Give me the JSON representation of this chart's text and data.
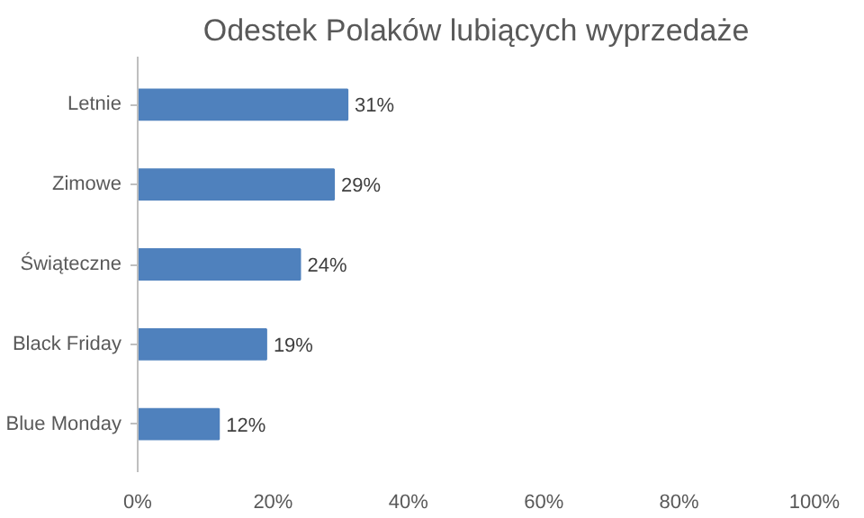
{
  "chart_data": {
    "type": "bar",
    "orientation": "horizontal",
    "title": "Odestek Polaków lubiących wyprzedaże",
    "categories": [
      "Letnie",
      "Zimowe",
      "Świąteczne",
      "Black Friday",
      "Blue Monday"
    ],
    "values": [
      31,
      29,
      24,
      19,
      12
    ],
    "color": "#4f81bd",
    "value_labels": [
      "31%",
      "29%",
      "24%",
      "19%",
      "12%"
    ],
    "xlim": [
      0,
      100
    ],
    "xticks": [
      {
        "value": 0,
        "label": "0%"
      },
      {
        "value": 20,
        "label": "20%"
      },
      {
        "value": 40,
        "label": "40%"
      },
      {
        "value": 60,
        "label": "60%"
      },
      {
        "value": 80,
        "label": "80%"
      },
      {
        "value": 100,
        "label": "100%"
      }
    ],
    "grid": false
  }
}
